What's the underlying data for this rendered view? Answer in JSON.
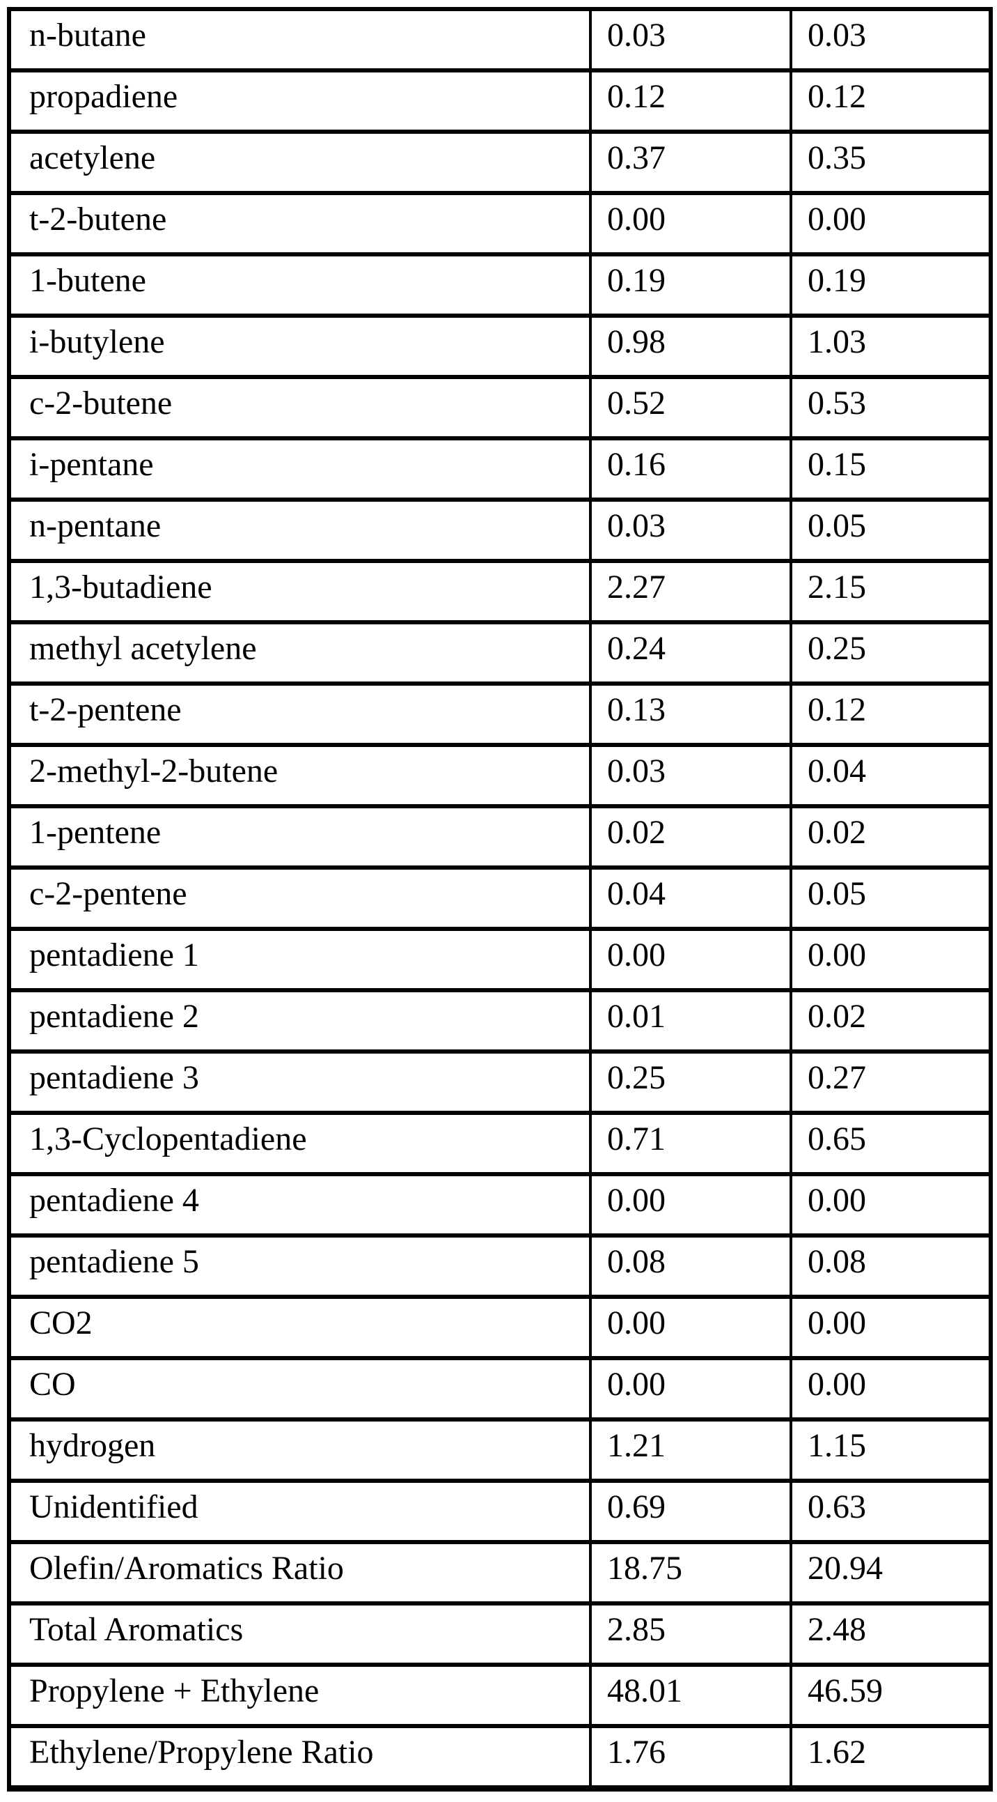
{
  "table": {
    "rows": [
      {
        "label": "n-butane",
        "col1": "0.03",
        "col2": "0.03"
      },
      {
        "label": "propadiene",
        "col1": "0.12",
        "col2": "0.12"
      },
      {
        "label": "acetylene",
        "col1": "0.37",
        "col2": "0.35"
      },
      {
        "label": "t-2-butene",
        "col1": "0.00",
        "col2": "0.00"
      },
      {
        "label": "1-butene",
        "col1": "0.19",
        "col2": "0.19"
      },
      {
        "label": "i-butylene",
        "col1": "0.98",
        "col2": "1.03"
      },
      {
        "label": "c-2-butene",
        "col1": "0.52",
        "col2": "0.53"
      },
      {
        "label": "i-pentane",
        "col1": "0.16",
        "col2": "0.15"
      },
      {
        "label": "n-pentane",
        "col1": "0.03",
        "col2": "0.05"
      },
      {
        "label": "1,3-butadiene",
        "col1": "2.27",
        "col2": "2.15"
      },
      {
        "label": "methyl acetylene",
        "col1": "0.24",
        "col2": "0.25"
      },
      {
        "label": "t-2-pentene",
        "col1": "0.13",
        "col2": "0.12"
      },
      {
        "label": "2-methyl-2-butene",
        "col1": "0.03",
        "col2": "0.04"
      },
      {
        "label": "1-pentene",
        "col1": "0.02",
        "col2": "0.02"
      },
      {
        "label": "c-2-pentene",
        "col1": "0.04",
        "col2": "0.05"
      },
      {
        "label": "pentadiene 1",
        "col1": "0.00",
        "col2": "0.00"
      },
      {
        "label": "pentadiene 2",
        "col1": "0.01",
        "col2": "0.02"
      },
      {
        "label": "pentadiene 3",
        "col1": "0.25",
        "col2": "0.27"
      },
      {
        "label": "1,3-Cyclopentadiene",
        "col1": "0.71",
        "col2": "0.65"
      },
      {
        "label": "pentadiene 4",
        "col1": "0.00",
        "col2": "0.00"
      },
      {
        "label": "pentadiene 5",
        "col1": "0.08",
        "col2": "0.08"
      },
      {
        "label": "CO2",
        "col1": "0.00",
        "col2": "0.00"
      },
      {
        "label": "CO",
        "col1": "0.00",
        "col2": "0.00"
      },
      {
        "label": "hydrogen",
        "col1": "1.21",
        "col2": "1.15"
      },
      {
        "label": "Unidentified",
        "col1": "0.69",
        "col2": "0.63"
      },
      {
        "label": "Olefin/Aromatics Ratio",
        "col1": "18.75",
        "col2": "20.94"
      },
      {
        "label": "Total Aromatics",
        "col1": "2.85",
        "col2": "2.48"
      },
      {
        "label": "Propylene + Ethylene",
        "col1": "48.01",
        "col2": "46.59"
      },
      {
        "label": "Ethylene/Propylene Ratio",
        "col1": "1.76",
        "col2": "1.62"
      }
    ]
  }
}
